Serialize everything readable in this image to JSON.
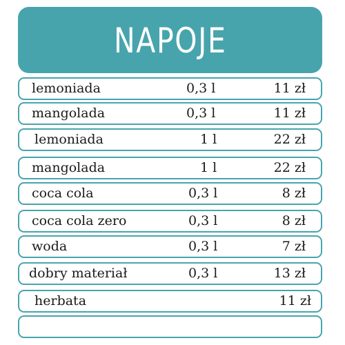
{
  "header": {
    "title": "NAPOJE",
    "color": "#47a4ad"
  },
  "rows": [
    {
      "name": "lemoniada",
      "volume": "0,3 l",
      "price": "11 zł"
    },
    {
      "name": "mangolada",
      "volume": "0,3 l",
      "price": "11 zł"
    },
    {
      "name": "lemoniada",
      "volume": "1 l",
      "price": "22 zł"
    },
    {
      "name": "mangolada",
      "volume": "1 l",
      "price": "22 zł"
    },
    {
      "name": "coca cola",
      "volume": "0,3 l",
      "price": "8 zł"
    },
    {
      "name": "coca cola zero",
      "volume": "0,3 l",
      "price": "8 zł"
    },
    {
      "name": "woda",
      "volume": "0,3 l",
      "price": "7 zł"
    },
    {
      "name": "dobry materiał",
      "volume": "0,3 l",
      "price": "13 zł"
    },
    {
      "name": "herbata",
      "volume": "",
      "price": "11 zł"
    },
    {
      "name": "",
      "volume": "",
      "price": ""
    }
  ]
}
